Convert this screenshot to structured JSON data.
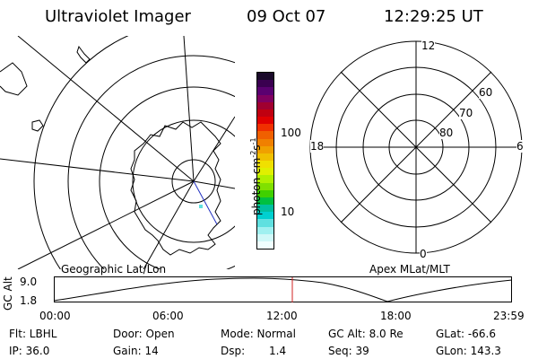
{
  "header": {
    "instrument": "Ultraviolet Imager",
    "date": "09 Oct 07",
    "time": "12:29:25 UT"
  },
  "colorbar": {
    "label": "photon cm",
    "exponent": "-2",
    "unit2": "s",
    "exponent2": "-1",
    "tick_high": "100",
    "tick_low": "10",
    "colors": [
      "#1a0a2a",
      "#3a0050",
      "#5a0070",
      "#800060",
      "#a00030",
      "#c00010",
      "#e00000",
      "#f03000",
      "#f06000",
      "#f08000",
      "#f0a000",
      "#f0c000",
      "#f0e000",
      "#e0f000",
      "#b0f000",
      "#80e000",
      "#40d000",
      "#00c040",
      "#00c0a0",
      "#00d0d0",
      "#60e0e0",
      "#a0f0f0",
      "#d0f8f8",
      "#f0ffff"
    ]
  },
  "left_map": {
    "label": "Geographic Lat/Lon"
  },
  "right_map": {
    "label": "Apex MLat/MLT",
    "mlt_top": "12",
    "mlt_left": "18",
    "mlt_right": "6",
    "mlt_bottom": "0",
    "lat_60": "60",
    "lat_70": "70",
    "lat_80": "80"
  },
  "altitude_plot": {
    "ylabel": "GC Alt",
    "y_high": "9.0",
    "y_low": "1.8",
    "x_ticks": [
      "00:00",
      "06:00",
      "12:00",
      "18:00",
      "23:59"
    ],
    "marker_color": "#d02020"
  },
  "info": {
    "flt": "Flt: LBHL",
    "ip": "IP: 36.0",
    "door": "Door: Open",
    "gain": "Gain: 14",
    "mode": "Mode: Normal",
    "dsp_label": "Dsp:",
    "dsp_value": "1.4",
    "gc_alt": "GC Alt: 8.0 Re",
    "seq": "Seq: 39",
    "glat": "GLat: -66.6",
    "glon": "GLon: 143.3"
  }
}
